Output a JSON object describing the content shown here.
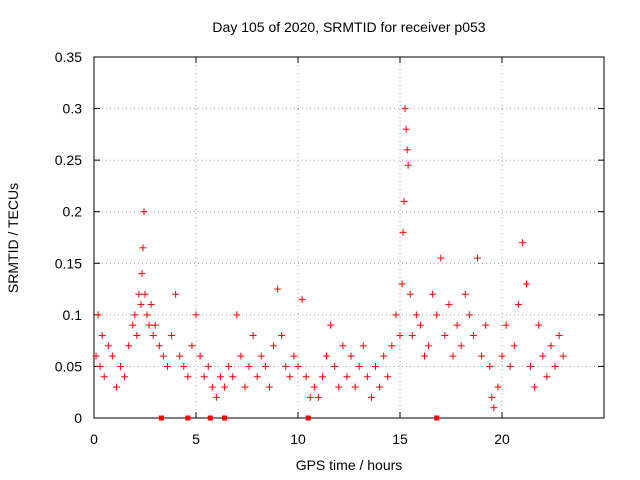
{
  "chart_data": {
    "type": "scatter",
    "title": "Day 105 of 2020, SRMTID for receiver p053",
    "xlabel": "GPS time / hours",
    "ylabel": "SRMTID / TECUs",
    "xlim": [
      0,
      25
    ],
    "ylim": [
      0,
      0.35
    ],
    "xticks": [
      0,
      5,
      10,
      15,
      20
    ],
    "xtick_labels": [
      "0",
      "5",
      "10",
      "15",
      "20"
    ],
    "yticks": [
      0,
      0.05,
      0.1,
      0.15,
      0.2,
      0.25,
      0.3,
      0.35
    ],
    "ytick_labels": [
      "0",
      "0.05",
      "0.1",
      "0.15",
      "0.2",
      "0.25",
      "0.3",
      "0.35"
    ],
    "grid": true,
    "marker": "plus",
    "series_color": "#ff0000",
    "series": [
      {
        "name": "SRMTID",
        "x": [
          0.1,
          0.2,
          0.3,
          0.4,
          0.5,
          0.7,
          0.9,
          1.1,
          1.3,
          1.5,
          1.7,
          1.9,
          2.0,
          2.1,
          2.2,
          2.3,
          2.35,
          2.4,
          2.45,
          2.5,
          2.6,
          2.7,
          2.8,
          2.9,
          3.0,
          3.2,
          3.4,
          3.6,
          3.8,
          4.0,
          4.2,
          4.4,
          4.6,
          4.8,
          5.0,
          5.2,
          5.4,
          5.6,
          5.8,
          6.0,
          6.2,
          6.4,
          6.6,
          6.8,
          7.0,
          7.2,
          7.4,
          7.6,
          7.8,
          8.0,
          8.2,
          8.4,
          8.6,
          8.8,
          9.0,
          9.2,
          9.4,
          9.6,
          9.8,
          10.0,
          10.2,
          10.4,
          10.6,
          10.8,
          11.0,
          11.2,
          11.4,
          11.6,
          11.8,
          12.0,
          12.2,
          12.4,
          12.6,
          12.8,
          13.0,
          13.2,
          13.4,
          13.6,
          13.8,
          14.0,
          14.2,
          14.4,
          14.6,
          14.8,
          15.0,
          15.1,
          15.15,
          15.2,
          15.25,
          15.3,
          15.35,
          15.4,
          15.5,
          15.6,
          15.8,
          16.0,
          16.2,
          16.4,
          16.6,
          16.8,
          17.0,
          17.2,
          17.4,
          17.6,
          17.8,
          18.0,
          18.2,
          18.4,
          18.6,
          18.8,
          19.0,
          19.2,
          19.4,
          19.5,
          19.6,
          19.8,
          20.0,
          20.2,
          20.4,
          20.6,
          20.8,
          21.0,
          21.2,
          21.4,
          21.6,
          21.8,
          22.0,
          22.2,
          22.4,
          22.6,
          22.8,
          23.0
        ],
        "y": [
          0.06,
          0.1,
          0.05,
          0.08,
          0.04,
          0.07,
          0.06,
          0.03,
          0.05,
          0.04,
          0.07,
          0.09,
          0.1,
          0.08,
          0.12,
          0.11,
          0.14,
          0.165,
          0.2,
          0.12,
          0.1,
          0.09,
          0.11,
          0.08,
          0.09,
          0.07,
          0.06,
          0.05,
          0.08,
          0.12,
          0.06,
          0.05,
          0.04,
          0.07,
          0.1,
          0.06,
          0.04,
          0.05,
          0.03,
          0.02,
          0.04,
          0.03,
          0.05,
          0.04,
          0.1,
          0.06,
          0.03,
          0.05,
          0.08,
          0.04,
          0.06,
          0.05,
          0.03,
          0.07,
          0.125,
          0.08,
          0.05,
          0.04,
          0.06,
          0.05,
          0.115,
          0.04,
          0.02,
          0.03,
          0.02,
          0.04,
          0.06,
          0.09,
          0.05,
          0.03,
          0.07,
          0.04,
          0.06,
          0.03,
          0.05,
          0.07,
          0.04,
          0.02,
          0.05,
          0.03,
          0.06,
          0.04,
          0.07,
          0.1,
          0.08,
          0.13,
          0.18,
          0.21,
          0.3,
          0.28,
          0.26,
          0.245,
          0.12,
          0.08,
          0.1,
          0.09,
          0.06,
          0.07,
          0.12,
          0.1,
          0.155,
          0.08,
          0.11,
          0.06,
          0.09,
          0.07,
          0.12,
          0.1,
          0.08,
          0.155,
          0.06,
          0.09,
          0.05,
          0.02,
          0.01,
          0.03,
          0.06,
          0.09,
          0.05,
          0.07,
          0.11,
          0.17,
          0.13,
          0.05,
          0.03,
          0.09,
          0.06,
          0.04,
          0.07,
          0.05,
          0.08,
          0.06
        ]
      }
    ],
    "zero_markers_x": [
      3.3,
      4.6,
      5.7,
      6.4,
      10.5,
      16.8
    ]
  }
}
